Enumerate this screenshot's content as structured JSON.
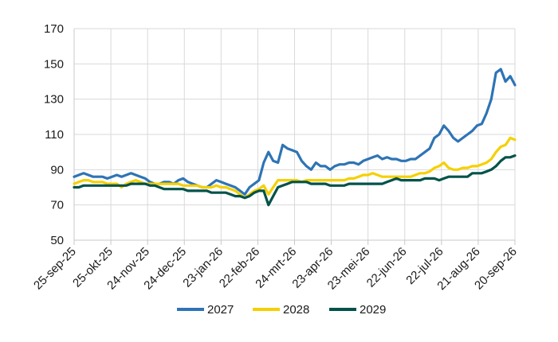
{
  "chart_data": {
    "type": "line",
    "title": "",
    "xlabel": "",
    "ylabel": "",
    "ylim": [
      50,
      170
    ],
    "yticks": [
      50,
      70,
      90,
      110,
      130,
      150,
      170
    ],
    "xticks": [
      "25-sep-25",
      "25-okt-25",
      "24-nov-25",
      "24-dec-25",
      "23-jan-26",
      "22-feb-26",
      "24-mrt-26",
      "23-apr-26",
      "23-mei-26",
      "22-jun-26",
      "22-jul-26",
      "21-aug-26",
      "20-sep-26"
    ],
    "grid": "vertical-and-horizontal",
    "legend": "bottom-center",
    "series": [
      {
        "name": "2027",
        "color": "#2E74B5",
        "values": [
          86,
          87,
          88,
          87,
          86,
          86,
          86,
          85,
          86,
          87,
          86,
          87,
          88,
          87,
          86,
          85,
          83,
          82,
          82,
          83,
          83,
          82,
          84,
          85,
          83,
          82,
          81,
          80,
          80,
          82,
          84,
          83,
          82,
          81,
          80,
          78,
          76,
          80,
          82,
          84,
          94,
          100,
          95,
          94,
          104,
          102,
          101,
          100,
          95,
          92,
          90,
          94,
          92,
          92,
          90,
          92,
          93,
          93,
          94,
          94,
          93,
          95,
          96,
          97,
          98,
          96,
          97,
          96,
          96,
          95,
          95,
          96,
          96,
          98,
          100,
          102,
          108,
          110,
          115,
          112,
          108,
          106,
          108,
          110,
          112,
          115,
          116,
          122,
          130,
          145,
          147,
          140,
          143,
          138
        ]
      },
      {
        "name": "2028",
        "color": "#F5D000",
        "values": [
          82,
          83,
          84,
          84,
          83,
          83,
          83,
          82,
          82,
          82,
          80,
          82,
          83,
          84,
          83,
          82,
          82,
          82,
          82,
          82,
          82,
          82,
          82,
          81,
          81,
          81,
          81,
          80,
          80,
          80,
          81,
          80,
          80,
          79,
          78,
          76,
          74,
          76,
          78,
          79,
          81,
          76,
          80,
          84,
          84,
          84,
          84,
          84,
          83,
          84,
          84,
          84,
          84,
          84,
          84,
          84,
          84,
          84,
          85,
          85,
          86,
          87,
          87,
          88,
          87,
          86,
          86,
          86,
          86,
          86,
          86,
          86,
          87,
          88,
          88,
          89,
          91,
          92,
          94,
          91,
          90,
          90,
          91,
          91,
          92,
          92,
          93,
          94,
          96,
          100,
          103,
          104,
          108,
          107
        ]
      },
      {
        "name": "2029",
        "color": "#00524A",
        "values": [
          80,
          80,
          81,
          81,
          81,
          81,
          81,
          81,
          81,
          81,
          81,
          81,
          82,
          82,
          82,
          82,
          81,
          81,
          80,
          79,
          79,
          79,
          79,
          79,
          78,
          78,
          78,
          78,
          78,
          77,
          77,
          77,
          77,
          76,
          75,
          75,
          74,
          75,
          77,
          78,
          78,
          70,
          75,
          80,
          81,
          82,
          83,
          83,
          83,
          83,
          82,
          82,
          82,
          82,
          81,
          81,
          81,
          81,
          82,
          82,
          82,
          82,
          82,
          82,
          82,
          82,
          83,
          84,
          85,
          84,
          84,
          84,
          84,
          84,
          85,
          85,
          85,
          84,
          85,
          86,
          86,
          86,
          86,
          86,
          88,
          88,
          88,
          89,
          90,
          92,
          95,
          97,
          97,
          98
        ]
      }
    ]
  }
}
